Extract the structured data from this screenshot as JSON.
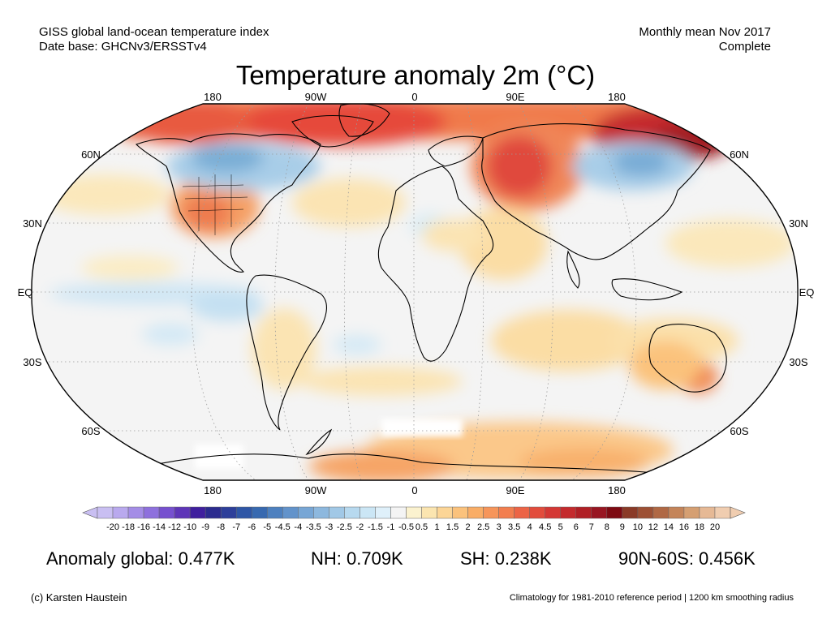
{
  "header": {
    "line1_left": "GISS global land-ocean temperature index",
    "line2_left": "Date base: GHCNv3/ERSSTv4",
    "line1_right": "Monthly mean Nov 2017",
    "line2_right": "Complete"
  },
  "title": "Temperature anomaly 2m (°C)",
  "longitude_labels_top": [
    "180",
    "90W",
    "0",
    "90E",
    "180"
  ],
  "longitude_labels_bottom": [
    "180",
    "90W",
    "0",
    "90E",
    "180"
  ],
  "latitude_labels_left": [
    "60N",
    "30N",
    "EQ",
    "30S",
    "60S"
  ],
  "latitude_labels_right": [
    "60N",
    "30N",
    "EQ",
    "30S",
    "60S"
  ],
  "colorbar": {
    "tick_labels": [
      "-20",
      "-18",
      "-16",
      "-14",
      "-12",
      "-10",
      "-9",
      "-8",
      "-7",
      "-6",
      "-5",
      "-4.5",
      "-4",
      "-3.5",
      "-3",
      "-2.5",
      "-2",
      "-1.5",
      "-1",
      "-0.5",
      "0.5",
      "1",
      "1.5",
      "2",
      "2.5",
      "3",
      "3.5",
      "4",
      "4.5",
      "5",
      "6",
      "7",
      "8",
      "9",
      "10",
      "12",
      "14",
      "16",
      "18",
      "20"
    ],
    "colors": [
      "#c9bff2",
      "#b9a9ee",
      "#a48de6",
      "#8e70dd",
      "#7650cf",
      "#5e35b8",
      "#3f1f9e",
      "#2b2b8f",
      "#2d3f9a",
      "#2e56a6",
      "#3769b0",
      "#4d80bf",
      "#6293cb",
      "#77a6d5",
      "#8db8de",
      "#a1c8e6",
      "#b7d9ef",
      "#cbe6f5",
      "#dff0fa",
      "#f4f4f4",
      "#fbf2cf",
      "#fbe5b0",
      "#fcd596",
      "#fbc27c",
      "#f9ad66",
      "#f6955a",
      "#f27e4f",
      "#ec6446",
      "#e24c3c",
      "#d43734",
      "#c42a2d",
      "#b01f25",
      "#981622",
      "#7e0a12",
      "#8a3a27",
      "#9d5034",
      "#b06844",
      "#c48459",
      "#d59f72",
      "#e6b995",
      "#f0cdb0"
    ]
  },
  "stats": {
    "global": "Anomaly global: 0.477K",
    "nh": "NH: 0.709K",
    "sh": "SH: 0.238K",
    "polar": "90N-60S: 0.456K"
  },
  "footer": {
    "credit": "(c) Karsten Haustein",
    "note": "Climatology for 1981-2010 reference period | 1200 km smoothing radius"
  }
}
